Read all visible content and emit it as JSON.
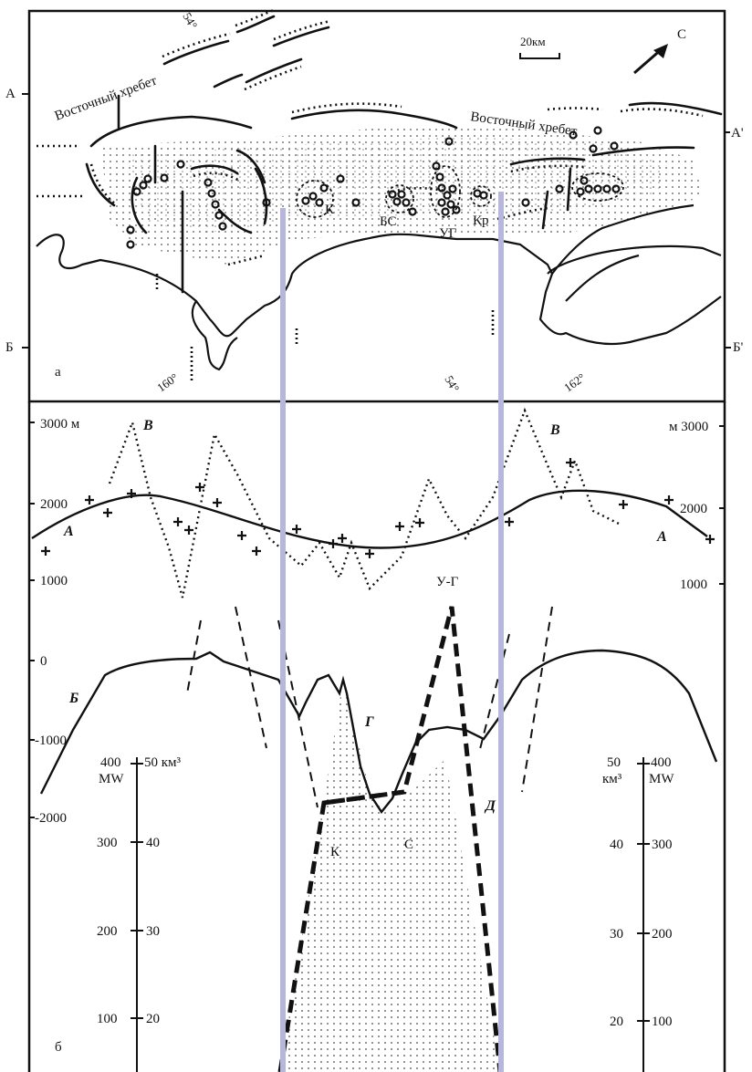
{
  "panel_a": {
    "label": "а",
    "ridge_label_1": "Восточный хребет",
    "ridge_label_2": "Восточный хребет",
    "lat_top": "54°",
    "lat_bottom": "54°",
    "lon_left": "160°",
    "lon_right": "162°",
    "scale_label": "20км",
    "north_label": "С",
    "profile_left": [
      "А",
      "Б"
    ],
    "profile_right": [
      "А'",
      "Б'"
    ],
    "centers": [
      "К",
      "БС",
      "УГ",
      "Кр"
    ]
  },
  "panel_b": {
    "label": "б",
    "curve_labels": {
      "A_left": "А",
      "A_right": "А",
      "B_left": "Б",
      "V_left": "В",
      "V_right": "В",
      "G": "Г",
      "D": "Д"
    },
    "point_labels": {
      "K": "К",
      "S": "С",
      "UG": "У-Г"
    },
    "left_elev_axis": {
      "ticks": [
        "3000 м",
        "2000",
        "1000",
        "0",
        "-1000",
        "-2000"
      ]
    },
    "right_elev_axis": {
      "ticks": [
        "м 3000",
        "2000",
        "1000"
      ]
    },
    "left_power_axis": {
      "unit_top": "400",
      "unit_label": "MW",
      "ticks": [
        "300",
        "200",
        "100"
      ]
    },
    "left_volume_axis": {
      "unit_top": "50 км³",
      "ticks": [
        "40",
        "30",
        "20"
      ]
    },
    "right_volume_axis": {
      "unit_top": "50",
      "unit_label": "км³",
      "ticks": [
        "40",
        "30",
        "20"
      ]
    },
    "right_power_axis": {
      "unit_top": "400",
      "unit_label": "MW",
      "ticks": [
        "300",
        "200",
        "100"
      ]
    }
  },
  "colors": {
    "guide": "#b7b7dc",
    "ink": "#111111",
    "stipple": "#888888"
  }
}
